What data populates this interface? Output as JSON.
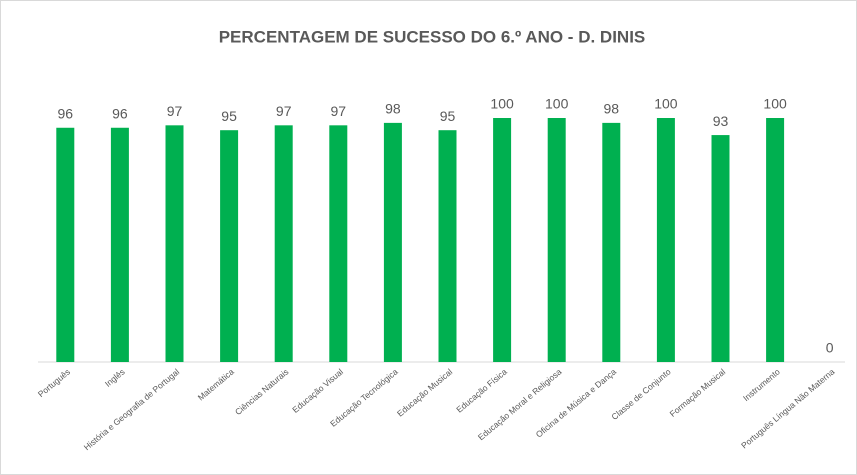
{
  "chart_data": {
    "type": "bar",
    "title": "PERCENTAGEM DE SUCESSO DO 6.º ANO - D. DINIS",
    "categories": [
      "Português",
      "Inglês",
      "História e Geografia de Portugal",
      "Matemática",
      "Ciências Naturais",
      "Educação Visual",
      "Educação Tecnológica",
      "Educação Musical",
      "Educação Física",
      "Educação Moral e Religiosa",
      "Oficina de Música e Dança",
      "Classe de Conjunto",
      "Formação Musical",
      "Instrumento",
      "Português Língua Não Materna"
    ],
    "values": [
      96,
      96,
      97,
      95,
      97,
      97,
      98,
      95,
      100,
      100,
      98,
      100,
      93,
      100,
      0
    ],
    "color": "#00b050",
    "ylim": [
      0,
      100
    ]
  }
}
